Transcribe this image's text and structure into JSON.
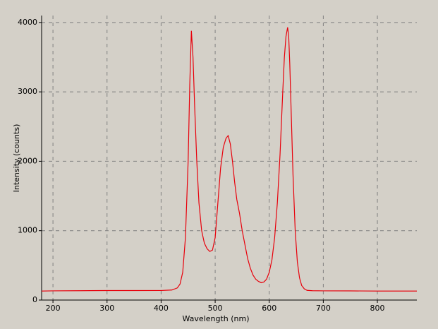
{
  "chart_data": {
    "type": "line",
    "x_label": "Wavelength (nm)",
    "y_label": "Intensity (counts)",
    "xlim": [
      179,
      873
    ],
    "ylim": [
      0,
      4100
    ],
    "xticks": [
      200,
      300,
      400,
      500,
      600,
      700,
      800
    ],
    "yticks": [
      0,
      1000,
      2000,
      3000,
      4000
    ],
    "grid": true,
    "x": [
      179,
      200,
      250,
      300,
      350,
      400,
      420,
      430,
      435,
      440,
      445,
      450,
      453,
      456,
      459,
      462,
      466,
      470,
      475,
      480,
      485,
      490,
      495,
      500,
      505,
      510,
      515,
      520,
      524,
      528,
      532,
      536,
      540,
      545,
      550,
      555,
      560,
      565,
      570,
      575,
      580,
      585,
      590,
      595,
      600,
      605,
      610,
      615,
      620,
      625,
      628,
      631,
      634,
      636,
      638,
      641,
      644,
      648,
      652,
      656,
      660,
      665,
      670,
      680,
      700,
      750,
      800,
      850,
      873
    ],
    "series": [
      {
        "color": "#e8000b",
        "values": [
          130,
          133,
          135,
          137,
          137,
          138,
          145,
          175,
          230,
          400,
          900,
          2000,
          3100,
          3880,
          3500,
          2800,
          2000,
          1400,
          1000,
          820,
          740,
          700,
          720,
          900,
          1400,
          1900,
          2200,
          2330,
          2370,
          2250,
          2000,
          1700,
          1450,
          1250,
          1000,
          800,
          600,
          460,
          360,
          300,
          270,
          250,
          260,
          300,
          400,
          580,
          900,
          1400,
          2100,
          3000,
          3500,
          3800,
          3930,
          3800,
          3400,
          2600,
          1800,
          1000,
          550,
          320,
          210,
          160,
          140,
          135,
          133,
          132,
          130,
          130,
          130
        ]
      }
    ]
  }
}
